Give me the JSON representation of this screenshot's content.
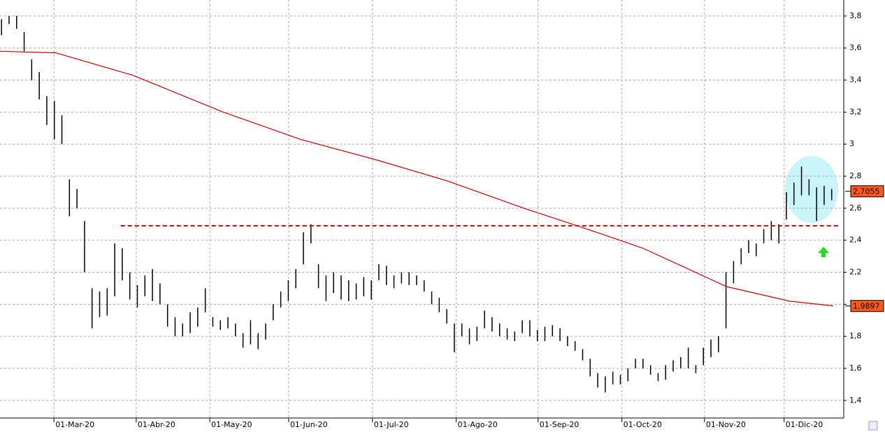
{
  "chart_data": {
    "type": "ohlc",
    "xlim": [
      -0.2,
      111.6
    ],
    "ylim": [
      1.29,
      3.9
    ],
    "yticks": [
      {
        "value": 1.4,
        "label": "1,4"
      },
      {
        "value": 1.6,
        "label": "1,6"
      },
      {
        "value": 1.8,
        "label": "1,8"
      },
      {
        "value": 2,
        "label": "2"
      },
      {
        "value": 2.2,
        "label": "2,2"
      },
      {
        "value": 2.4,
        "label": "2,4"
      },
      {
        "value": 2.6,
        "label": "2,6"
      },
      {
        "value": 2.8,
        "label": "2,8"
      },
      {
        "value": 3,
        "label": "3"
      },
      {
        "value": 3.2,
        "label": "3,2"
      },
      {
        "value": 3.4,
        "label": "3,4"
      },
      {
        "value": 3.6,
        "label": "3,6"
      },
      {
        "value": 3.8,
        "label": "3,8"
      }
    ],
    "xticks": [
      {
        "value": 6.95,
        "label": "01-Mar-20"
      },
      {
        "value": 17.85,
        "label": "01-Abr-20"
      },
      {
        "value": 27.6,
        "label": "01-May-20"
      },
      {
        "value": 38.05,
        "label": "01-Jun-20"
      },
      {
        "value": 49.15,
        "label": "01-Jul-20"
      },
      {
        "value": 60.25,
        "label": "01-Ago-20"
      },
      {
        "value": 71.1,
        "label": "01-Sep-20"
      },
      {
        "value": 82.2,
        "label": "01-Oct-20"
      },
      {
        "value": 93.15,
        "label": "01-Nov-20"
      },
      {
        "value": 103.7,
        "label": "01-Dic-20"
      }
    ],
    "grid": true,
    "bar_color": "#000000",
    "high": [
      3.78,
      3.8,
      3.8,
      3.7,
      3.53,
      3.45,
      3.3,
      3.27,
      3.18,
      2.78,
      2.72,
      2.52,
      2.1,
      2.08,
      2.1,
      2.38,
      2.35,
      2.2,
      2.12,
      2.18,
      2.22,
      2.13,
      2.0,
      1.92,
      1.88,
      1.95,
      1.98,
      2.1,
      1.92,
      1.9,
      1.92,
      1.88,
      1.82,
      1.9,
      1.82,
      1.88,
      2.0,
      2.08,
      2.15,
      2.22,
      2.45,
      2.5,
      2.25,
      2.18,
      2.2,
      2.18,
      2.15,
      2.13,
      2.17,
      2.15,
      2.25,
      2.24,
      2.18,
      2.2,
      2.2,
      2.18,
      2.15,
      2.08,
      2.04,
      1.97,
      1.88,
      1.88,
      1.85,
      1.86,
      1.96,
      1.92,
      1.88,
      1.85,
      1.83,
      1.9,
      1.9,
      1.84,
      1.86,
      1.87,
      1.85,
      1.8,
      1.77,
      1.72,
      1.66,
      1.57,
      1.55,
      1.58,
      1.56,
      1.6,
      1.66,
      1.66,
      1.62,
      1.57,
      1.62,
      1.65,
      1.67,
      1.73,
      1.62,
      1.73,
      1.78,
      1.8,
      2.2,
      2.27,
      2.35,
      2.4,
      2.38,
      2.47,
      2.52,
      2.5,
      2.7,
      2.76,
      2.86,
      2.78,
      2.73,
      2.74,
      2.72
    ],
    "low": [
      3.68,
      3.75,
      3.72,
      3.58,
      3.4,
      3.28,
      3.12,
      3.03,
      3.0,
      2.55,
      2.6,
      2.2,
      1.85,
      1.92,
      1.93,
      2.05,
      2.15,
      2.03,
      1.98,
      2.05,
      2.02,
      2.0,
      1.86,
      1.8,
      1.8,
      1.82,
      1.86,
      1.95,
      1.86,
      1.84,
      1.85,
      1.8,
      1.73,
      1.75,
      1.72,
      1.78,
      1.9,
      1.98,
      2.02,
      2.1,
      2.25,
      2.38,
      2.1,
      2.02,
      2.07,
      2.03,
      2.02,
      2.03,
      2.05,
      2.03,
      2.15,
      2.12,
      2.1,
      2.13,
      2.12,
      2.12,
      2.08,
      2.0,
      1.95,
      1.88,
      1.7,
      1.8,
      1.75,
      1.77,
      1.85,
      1.83,
      1.8,
      1.78,
      1.77,
      1.82,
      1.8,
      1.77,
      1.77,
      1.8,
      1.77,
      1.74,
      1.71,
      1.65,
      1.55,
      1.48,
      1.45,
      1.5,
      1.5,
      1.52,
      1.6,
      1.6,
      1.56,
      1.52,
      1.53,
      1.58,
      1.6,
      1.6,
      1.57,
      1.62,
      1.67,
      1.7,
      1.85,
      2.13,
      2.25,
      2.32,
      2.3,
      2.38,
      2.4,
      2.38,
      2.53,
      2.62,
      2.68,
      2.68,
      2.52,
      2.62,
      2.65
    ],
    "ma": {
      "color": "#cc0000",
      "x": [
        -0.2,
        7.2,
        17.4,
        29.4,
        39.6,
        49.8,
        59.1,
        69.2,
        77.6,
        85,
        96.1,
        104.4,
        110.2
      ],
      "values": [
        3.58,
        3.57,
        3.43,
        3.2,
        3.03,
        2.9,
        2.77,
        2.6,
        2.47,
        2.35,
        2.11,
        2.02,
        1.99
      ]
    },
    "support_level": {
      "value": 2.49,
      "x": [
        15.8,
        110.9
      ],
      "color": "#dd0000"
    },
    "last_labels": [
      {
        "value": 2.7055,
        "label": "2,7055"
      },
      {
        "value": 1.9897,
        "label": "1,9897"
      }
    ]
  }
}
